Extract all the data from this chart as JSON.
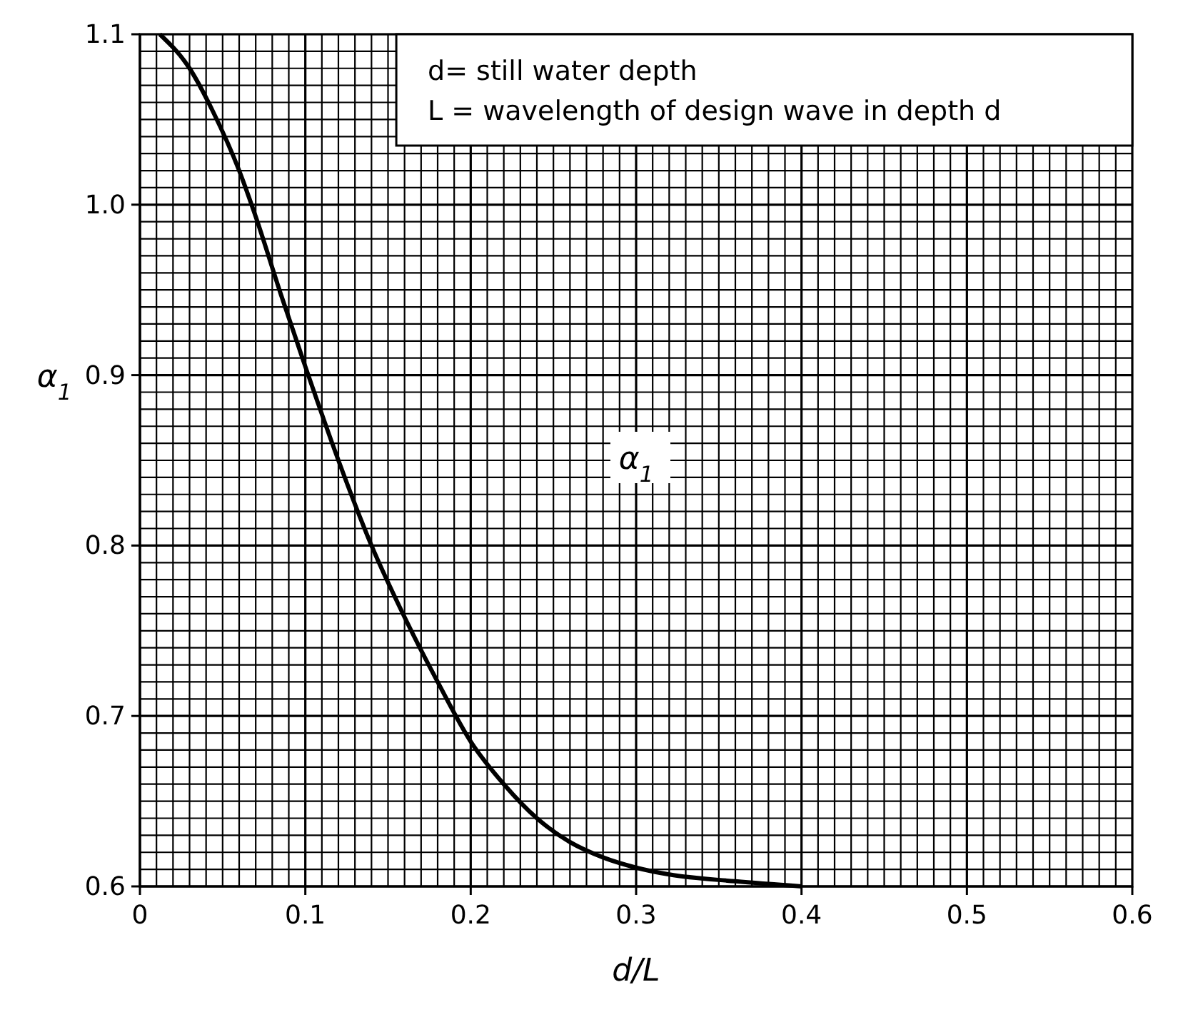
{
  "chart_data": {
    "type": "line",
    "xlabel": "d/L",
    "ylabel": "α$_{1}$",
    "x": [
      0.012,
      0.03,
      0.044,
      0.06,
      0.07,
      0.085,
      0.1,
      0.12,
      0.14,
      0.16,
      0.18,
      0.2,
      0.22,
      0.24,
      0.26,
      0.28,
      0.3,
      0.32,
      0.36,
      0.4
    ],
    "series": [
      {
        "color": "#000000",
        "values": [
          1.1,
          1.08,
          1.055,
          1.02,
          0.993,
          0.948,
          0.905,
          0.85,
          0.8,
          0.758,
          0.72,
          0.685,
          0.66,
          0.64,
          0.626,
          0.617,
          0.611,
          0.607,
          0.603,
          0.6
        ]
      }
    ],
    "xlim": [
      0,
      0.6
    ],
    "ylim": [
      0.6,
      1.1
    ],
    "xticks": [
      {
        "value": 0,
        "label": "0"
      },
      0.1,
      0.2,
      0.3,
      0.4,
      0.5,
      0.6
    ],
    "yticks": [
      0.6,
      0.7,
      0.8,
      0.9,
      {
        "value": 1,
        "label": "1.0"
      },
      1.1
    ],
    "grid": true,
    "marker": "none",
    "line_style": "solid",
    "annotations": [
      "d= still  water depth",
      "L = wavelength of design wave in depth d",
      "α$_{1}$"
    ]
  }
}
